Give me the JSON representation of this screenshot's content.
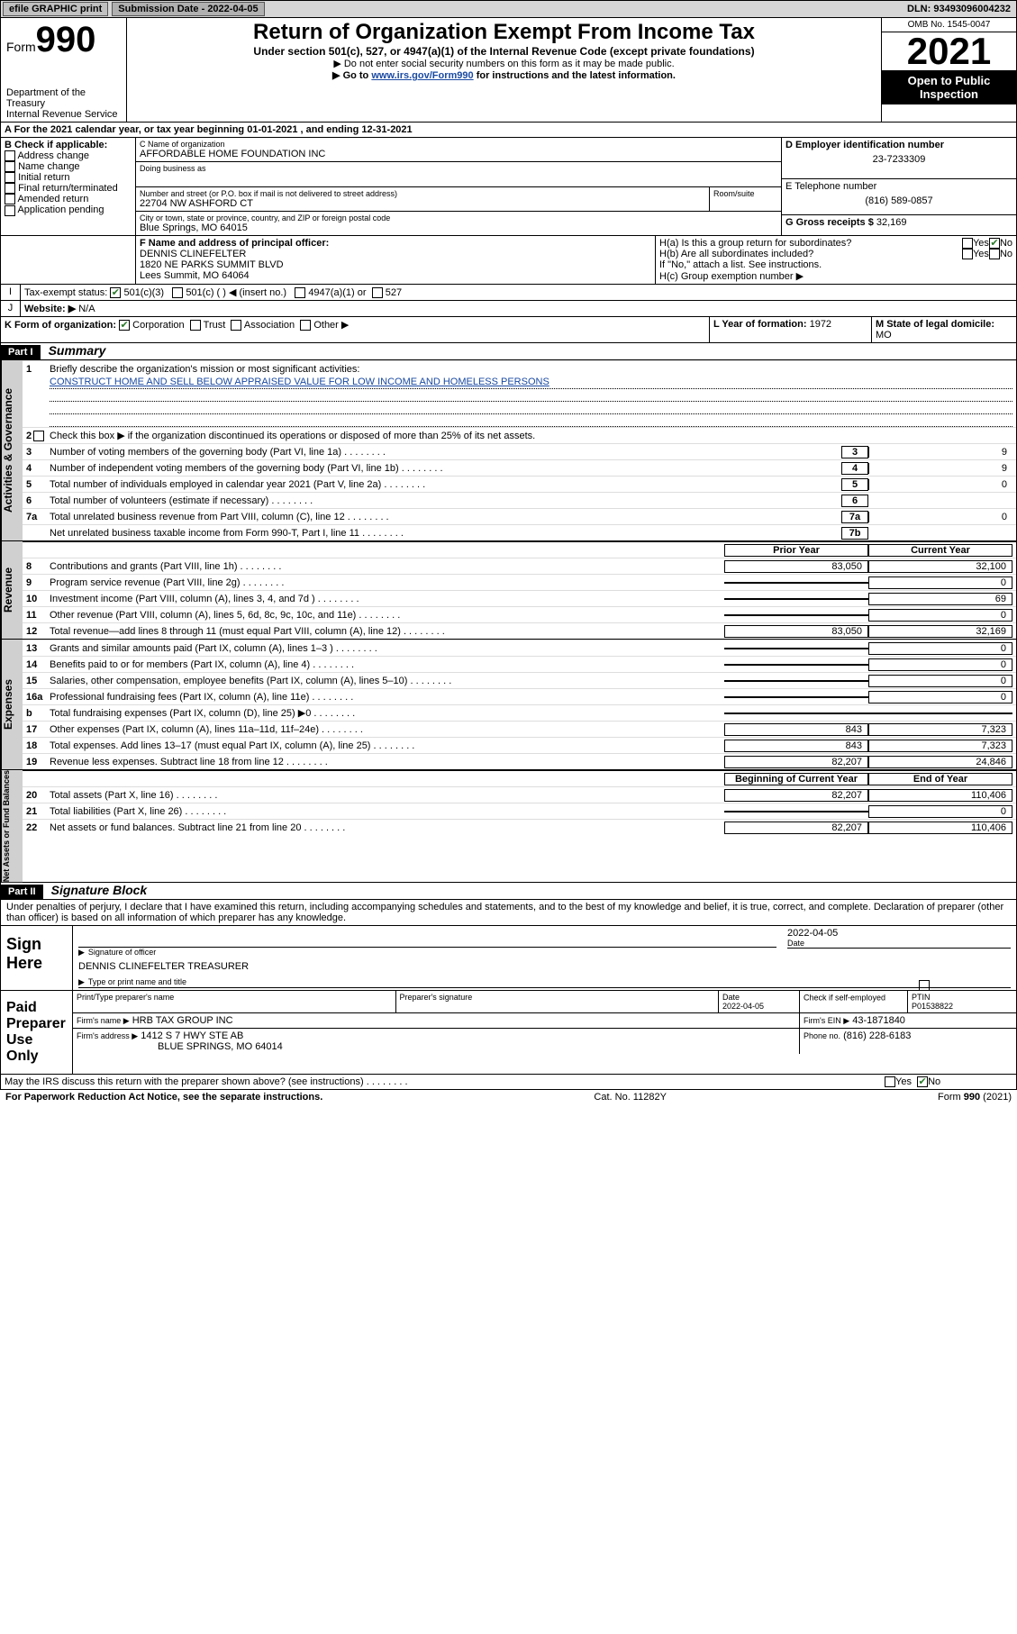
{
  "topbar": {
    "efile_label": "efile GRAPHIC print",
    "submission_label": "Submission Date - 2022-04-05",
    "dln": "DLN: 93493096004232"
  },
  "header": {
    "form_label": "Form",
    "form_number": "990",
    "dept": "Department of the Treasury",
    "irs": "Internal Revenue Service",
    "title": "Return of Organization Exempt From Income Tax",
    "subtitle": "Under section 501(c), 527, or 4947(a)(1) of the Internal Revenue Code (except private foundations)",
    "note1": "▶ Do not enter social security numbers on this form as it may be made public.",
    "note2_pre": "▶ Go to ",
    "note2_link": "www.irs.gov/Form990",
    "note2_post": " for instructions and the latest information.",
    "omb": "OMB No. 1545-0047",
    "year": "2021",
    "open_public": "Open to Public Inspection"
  },
  "period": {
    "label_a": "A For the 2021 calendar year, or tax year beginning ",
    "begin": "01-01-2021",
    "label_mid": " , and ending ",
    "end": "12-31-2021"
  },
  "boxB": {
    "label": "B Check if applicable:",
    "items": [
      "Address change",
      "Name change",
      "Initial return",
      "Final return/terminated",
      "Amended return",
      "Application pending"
    ]
  },
  "boxC": {
    "name_label": "C Name of organization",
    "name": "AFFORDABLE HOME FOUNDATION INC",
    "dba_label": "Doing business as",
    "street_label": "Number and street (or P.O. box if mail is not delivered to street address)",
    "room_label": "Room/suite",
    "street": "22704 NW ASHFORD CT",
    "city_label": "City or town, state or province, country, and ZIP or foreign postal code",
    "city": "Blue Springs, MO  64015"
  },
  "boxD": {
    "label": "D Employer identification number",
    "value": "23-7233309"
  },
  "boxE": {
    "label": "E Telephone number",
    "value": "(816) 589-0857"
  },
  "boxG": {
    "label": "G Gross receipts $",
    "value": "32,169"
  },
  "boxF": {
    "label": "F Name and address of principal officer:",
    "name": "DENNIS CLINEFELTER",
    "addr1": "1820 NE PARKS SUMMIT BLVD",
    "addr2": "Lees Summit, MO  64064"
  },
  "boxH": {
    "a_label": "H(a)  Is this a group return for subordinates?",
    "b_label": "H(b)  Are all subordinates included?",
    "b_note": "If \"No,\" attach a list. See instructions.",
    "c_label": "H(c)  Group exemption number ▶"
  },
  "boxI": {
    "label": "Tax-exempt status:",
    "opt1": "501(c)(3)",
    "opt2": "501(c) (  ) ◀ (insert no.)",
    "opt3": "4947(a)(1) or",
    "opt4": "527"
  },
  "boxJ": {
    "label": "Website: ▶",
    "value": "N/A"
  },
  "boxK": {
    "label": "K Form of organization:",
    "opts": [
      "Corporation",
      "Trust",
      "Association",
      "Other ▶"
    ]
  },
  "boxL": {
    "label": "L Year of formation:",
    "value": "1972"
  },
  "boxM": {
    "label": "M State of legal domicile:",
    "value": "MO"
  },
  "partI": {
    "part": "Part I",
    "title": "Summary"
  },
  "summary": {
    "line1_label": "Briefly describe the organization's mission or most significant activities:",
    "line1_text": "CONSTRUCT HOME AND SELL BELOW APPRAISED VALUE FOR LOW INCOME AND HOMELESS PERSONS",
    "line2": "Check this box ▶         if the organization discontinued its operations or disposed of more than 25% of its net assets.",
    "lines_numbered": [
      {
        "n": "3",
        "label": "Number of voting members of the governing body (Part VI, line 1a)",
        "box": "3",
        "val": "9"
      },
      {
        "n": "4",
        "label": "Number of independent voting members of the governing body (Part VI, line 1b)",
        "box": "4",
        "val": "9"
      },
      {
        "n": "5",
        "label": "Total number of individuals employed in calendar year 2021 (Part V, line 2a)",
        "box": "5",
        "val": "0"
      },
      {
        "n": "6",
        "label": "Total number of volunteers (estimate if necessary)",
        "box": "6",
        "val": ""
      },
      {
        "n": "7a",
        "label": "Total unrelated business revenue from Part VIII, column (C), line 12",
        "box": "7a",
        "val": "0"
      },
      {
        "n": "",
        "label": "Net unrelated business taxable income from Form 990-T, Part I, line 11",
        "box": "7b",
        "val": ""
      }
    ],
    "col_prior": "Prior Year",
    "col_current": "Current Year",
    "rev_rows": [
      {
        "n": "8",
        "label": "Contributions and grants (Part VIII, line 1h)",
        "prior": "83,050",
        "current": "32,100"
      },
      {
        "n": "9",
        "label": "Program service revenue (Part VIII, line 2g)",
        "prior": "",
        "current": "0"
      },
      {
        "n": "10",
        "label": "Investment income (Part VIII, column (A), lines 3, 4, and 7d )",
        "prior": "",
        "current": "69"
      },
      {
        "n": "11",
        "label": "Other revenue (Part VIII, column (A), lines 5, 6d, 8c, 9c, 10c, and 11e)",
        "prior": "",
        "current": "0"
      },
      {
        "n": "12",
        "label": "Total revenue—add lines 8 through 11 (must equal Part VIII, column (A), line 12)",
        "prior": "83,050",
        "current": "32,169"
      }
    ],
    "exp_rows": [
      {
        "n": "13",
        "label": "Grants and similar amounts paid (Part IX, column (A), lines 1–3 )",
        "prior": "",
        "current": "0"
      },
      {
        "n": "14",
        "label": "Benefits paid to or for members (Part IX, column (A), line 4)",
        "prior": "",
        "current": "0"
      },
      {
        "n": "15",
        "label": "Salaries, other compensation, employee benefits (Part IX, column (A), lines 5–10)",
        "prior": "",
        "current": "0"
      },
      {
        "n": "16a",
        "label": "Professional fundraising fees (Part IX, column (A), line 11e)",
        "prior": "",
        "current": "0"
      },
      {
        "n": "b",
        "label": "Total fundraising expenses (Part IX, column (D), line 25) ▶0",
        "prior": "SHADE",
        "current": "SHADE"
      },
      {
        "n": "17",
        "label": "Other expenses (Part IX, column (A), lines 11a–11d, 11f–24e)",
        "prior": "843",
        "current": "7,323"
      },
      {
        "n": "18",
        "label": "Total expenses. Add lines 13–17 (must equal Part IX, column (A), line 25)",
        "prior": "843",
        "current": "7,323"
      },
      {
        "n": "19",
        "label": "Revenue less expenses. Subtract line 18 from line 12",
        "prior": "82,207",
        "current": "24,846"
      }
    ],
    "col_begin": "Beginning of Current Year",
    "col_end": "End of Year",
    "net_rows": [
      {
        "n": "20",
        "label": "Total assets (Part X, line 16)",
        "prior": "82,207",
        "current": "110,406"
      },
      {
        "n": "21",
        "label": "Total liabilities (Part X, line 26)",
        "prior": "",
        "current": "0"
      },
      {
        "n": "22",
        "label": "Net assets or fund balances. Subtract line 21 from line 20",
        "prior": "82,207",
        "current": "110,406"
      }
    ]
  },
  "vtabs": {
    "gov": "Activities & Governance",
    "rev": "Revenue",
    "exp": "Expenses",
    "net": "Net Assets or Fund Balances"
  },
  "partII": {
    "part": "Part II",
    "title": "Signature Block"
  },
  "penalties": "Under penalties of perjury, I declare that I have examined this return, including accompanying schedules and statements, and to the best of my knowledge and belief, it is true, correct, and complete. Declaration of preparer (other than officer) is based on all information of which preparer has any knowledge.",
  "sign": {
    "here": "Sign Here",
    "sig_label": "Signature of officer",
    "date_label": "Date",
    "date": "2022-04-05",
    "officer": "DENNIS CLINEFELTER TREASURER",
    "name_label": "Type or print name and title"
  },
  "paid": {
    "title": "Paid Preparer Use Only",
    "col1": "Print/Type preparer's name",
    "col2": "Preparer's signature",
    "col3": "Date",
    "date": "2022-04-05",
    "check_label": "Check          if self-employed",
    "ptin_label": "PTIN",
    "ptin": "P01538822",
    "firm_name_label": "Firm's name    ▶",
    "firm_name": "HRB TAX GROUP INC",
    "firm_ein_label": "Firm's EIN ▶",
    "firm_ein": "43-1871840",
    "firm_addr_label": "Firm's address ▶",
    "firm_addr1": "1412 S 7 HWY STE AB",
    "firm_addr2": "BLUE SPRINGS, MO  64014",
    "phone_label": "Phone no.",
    "phone": "(816) 228-6183"
  },
  "discuss": {
    "label": "May the IRS discuss this return with the preparer shown above? (see instructions)"
  },
  "footer": {
    "left": "For Paperwork Reduction Act Notice, see the separate instructions.",
    "center": "Cat. No. 11282Y",
    "right_pre": "Form ",
    "right_bold": "990",
    "right_post": " (2021)"
  }
}
